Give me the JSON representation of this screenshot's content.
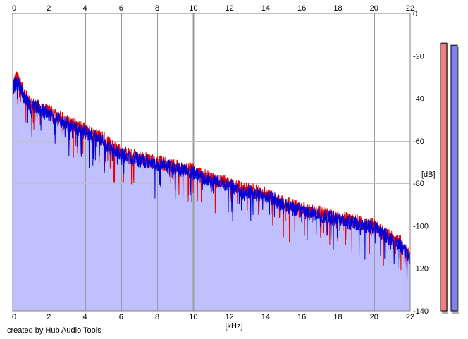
{
  "credit": "created by Hub Audio Tools",
  "chart_data": {
    "type": "area",
    "title": "",
    "xlabel": "[kHz]",
    "ylabel": "[dB]",
    "xlim": [
      0,
      22
    ],
    "ylim": [
      -140,
      0
    ],
    "x_ticks": [
      0,
      2,
      4,
      6,
      8,
      10,
      12,
      14,
      16,
      18,
      20,
      22
    ],
    "y_ticks": [
      0,
      -20,
      -40,
      -60,
      -80,
      -100,
      -120,
      -140
    ],
    "grid": true,
    "colors": {
      "left_channel": "#e80000",
      "right_channel": "#0000d8",
      "fill": "#c0c0ff"
    },
    "series": [
      {
        "x": [
          0,
          0.2,
          0.4,
          0.6,
          0.8,
          1.0,
          1.5,
          2,
          2.5,
          3,
          3.5,
          4,
          4.5,
          5,
          5.5,
          6,
          6.5,
          7,
          7.5,
          8,
          8.5,
          9,
          9.5,
          10,
          10.5,
          11,
          11.5,
          12,
          12.5,
          13,
          13.5,
          14,
          14.5,
          15,
          15.5,
          16,
          16.5,
          17,
          17.5,
          18,
          18.5,
          19,
          19.5,
          20,
          20.5,
          21,
          21.5,
          22
        ],
        "values": [
          -35,
          -30,
          -33,
          -38,
          -40,
          -43,
          -44,
          -46,
          -49,
          -51,
          -53,
          -55,
          -57,
          -59,
          -63,
          -65,
          -67,
          -68,
          -69,
          -70,
          -71,
          -72,
          -73,
          -74,
          -76,
          -78,
          -79,
          -80,
          -82,
          -83,
          -84,
          -85,
          -87,
          -89,
          -91,
          -92,
          -93,
          -94,
          -95,
          -96,
          -97,
          -98,
          -99,
          -100,
          -103,
          -106,
          -108,
          -115
        ]
      },
      {
        "x": [
          0,
          0.2,
          0.4,
          0.6,
          0.8,
          1.0,
          1.5,
          2,
          2.5,
          3,
          3.5,
          4,
          4.5,
          5,
          5.5,
          6,
          6.5,
          7,
          7.5,
          8,
          8.5,
          9,
          9.5,
          10,
          10.5,
          11,
          11.5,
          12,
          12.5,
          13,
          13.5,
          14,
          14.5,
          15,
          15.5,
          16,
          16.5,
          17,
          17.5,
          18,
          18.5,
          19,
          19.5,
          20,
          20.5,
          21,
          21.5,
          22
        ],
        "values": [
          -36,
          -31,
          -34,
          -39,
          -41,
          -44,
          -45,
          -47,
          -50,
          -52,
          -54,
          -56,
          -58,
          -60,
          -64,
          -66,
          -68,
          -69,
          -70,
          -71,
          -72,
          -73,
          -74,
          -75,
          -77,
          -79,
          -80,
          -81,
          -83,
          -84,
          -85,
          -86,
          -88,
          -90,
          -92,
          -93,
          -94,
          -95,
          -96,
          -97,
          -98,
          -99,
          -100,
          -101,
          -104,
          -107,
          -110,
          -116
        ]
      }
    ],
    "level_meters": [
      {
        "value": -14
      },
      {
        "value": -15
      }
    ]
  }
}
